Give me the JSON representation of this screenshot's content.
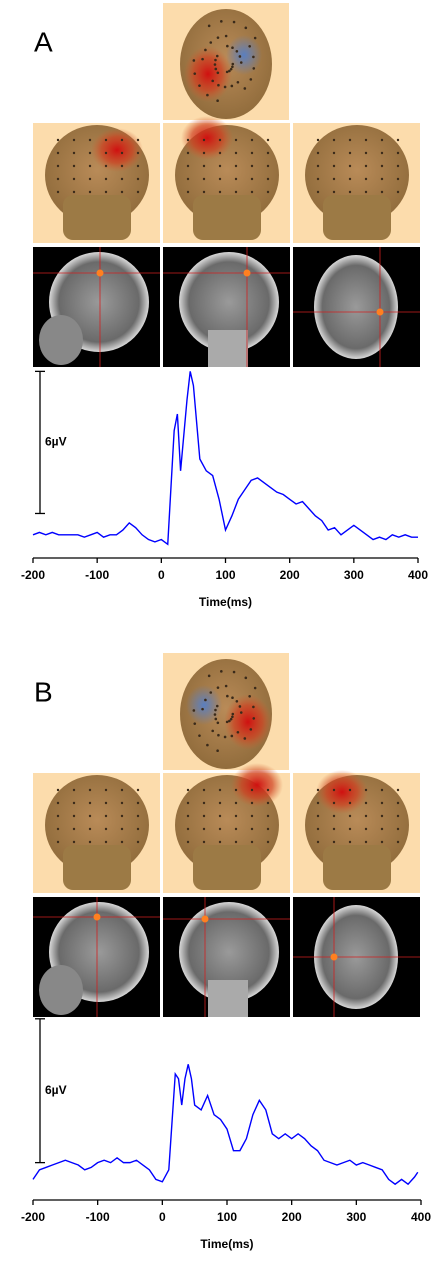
{
  "chart_data": [
    {
      "type": "line",
      "panel_label": "A",
      "x_label": "Time(ms)",
      "scale_bar": {
        "value": 6,
        "label": "6µV",
        "top": 6.9
      },
      "xlim": [
        -200,
        400
      ],
      "xticks": [
        -200,
        -100,
        0,
        100,
        200,
        300,
        400
      ],
      "ylim": [
        -0.6,
        7
      ],
      "x": [
        -200,
        -190,
        -180,
        -170,
        -160,
        -150,
        -140,
        -130,
        -120,
        -110,
        -100,
        -90,
        -80,
        -70,
        -60,
        -50,
        -40,
        -30,
        -20,
        -10,
        0,
        10,
        20,
        25,
        30,
        40,
        45,
        50,
        60,
        70,
        80,
        90,
        100,
        110,
        120,
        130,
        140,
        150,
        160,
        170,
        180,
        190,
        200,
        210,
        220,
        230,
        240,
        250,
        260,
        270,
        280,
        290,
        300,
        310,
        320,
        330,
        340,
        350,
        360,
        370,
        380,
        390,
        400
      ],
      "series": [
        {
          "color": "#0000ff",
          "values": [
            0,
            0.1,
            0,
            0.1,
            0,
            0,
            0,
            0,
            -0.1,
            0,
            0.1,
            -0.1,
            0,
            0,
            0.2,
            0.5,
            0.3,
            0,
            -0.2,
            -0.3,
            -0.2,
            -0.4,
            4.4,
            5.1,
            2.7,
            5.7,
            6.9,
            6.3,
            3.2,
            2.7,
            2.5,
            1.5,
            0.2,
            0.8,
            1.5,
            1.9,
            2.3,
            2.4,
            2.2,
            2.0,
            1.8,
            1.7,
            1.5,
            1.3,
            1.4,
            1.1,
            0.8,
            0.6,
            0.2,
            0.3,
            0,
            0.2,
            0.4,
            0.2,
            0,
            -0.2,
            -0.1,
            -0.2,
            0,
            -0.1,
            0,
            -0.1,
            -0.1
          ]
        }
      ]
    },
    {
      "type": "line",
      "panel_label": "B",
      "x_label": "Time(ms)",
      "scale_bar": {
        "value": 6,
        "label": "6µV",
        "top": 6.3
      },
      "xlim": [
        -200,
        400
      ],
      "xticks": [
        -200,
        -100,
        0,
        100,
        200,
        300,
        400
      ],
      "ylim": [
        -0.8,
        6.5
      ],
      "x": [
        -200,
        -190,
        -180,
        -170,
        -160,
        -150,
        -140,
        -130,
        -120,
        -110,
        -100,
        -90,
        -80,
        -70,
        -60,
        -50,
        -40,
        -30,
        -20,
        -10,
        0,
        10,
        20,
        25,
        30,
        35,
        40,
        45,
        50,
        60,
        70,
        80,
        90,
        100,
        110,
        120,
        130,
        140,
        150,
        160,
        170,
        180,
        190,
        200,
        210,
        220,
        230,
        240,
        250,
        260,
        270,
        280,
        290,
        300,
        310,
        320,
        330,
        340,
        350,
        360,
        370,
        380,
        390,
        395
      ],
      "series": [
        {
          "color": "#0000ff",
          "values": [
            -0.4,
            0,
            0.1,
            0.2,
            0.3,
            0.4,
            0.3,
            0.2,
            0,
            0.1,
            0.3,
            0.4,
            0.3,
            0.5,
            0.3,
            0.3,
            0.4,
            0.2,
            0,
            -0.4,
            -0.5,
            0,
            4.0,
            3.8,
            2.7,
            3.8,
            4.4,
            3.8,
            2.7,
            2.5,
            3.1,
            2.3,
            2.1,
            1.7,
            0.8,
            0.8,
            1.3,
            2.3,
            2.9,
            2.5,
            1.5,
            1.3,
            1.5,
            1.3,
            1.5,
            1.3,
            1.0,
            0.8,
            0.4,
            0.3,
            0.2,
            0.3,
            0.4,
            0.2,
            0.3,
            0.2,
            0.1,
            0,
            -0.4,
            -0.6,
            -0.4,
            -0.6,
            -0.3,
            -0.1
          ]
        }
      ]
    }
  ]
}
